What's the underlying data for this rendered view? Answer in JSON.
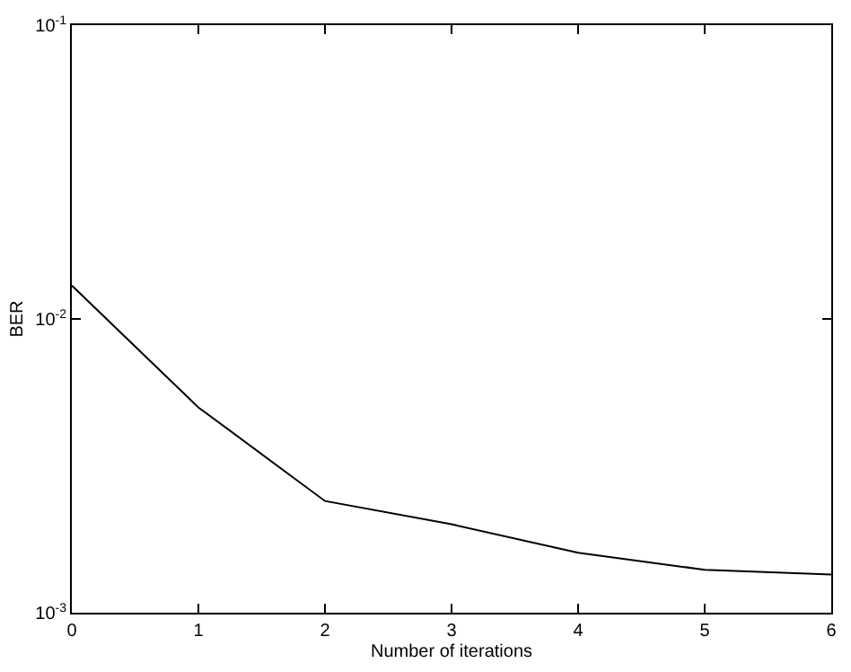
{
  "chart_data": {
    "type": "line",
    "xlabel": "Number of iterations",
    "ylabel": "BER",
    "x": [
      0,
      1,
      2,
      3,
      4,
      5,
      6
    ],
    "series": [
      {
        "color": "#000000",
        "values": [
          0.013,
          0.005,
          0.0024,
          0.002,
          0.0016,
          0.0014,
          0.00135
        ]
      }
    ],
    "log": "y",
    "marker": "none",
    "line_style": "solid",
    "xlim": [
      0,
      6
    ],
    "xticks": [
      0,
      1,
      2,
      3,
      4,
      5,
      6
    ],
    "ylim": [
      0.001,
      0.1
    ],
    "yticks": [
      {
        "value": 0.001,
        "label": "10$^{-3}$"
      },
      {
        "value": 0.01,
        "label": "10$^{-2}$"
      },
      {
        "value": 0.1,
        "label": "10$^{-1}$"
      }
    ]
  }
}
